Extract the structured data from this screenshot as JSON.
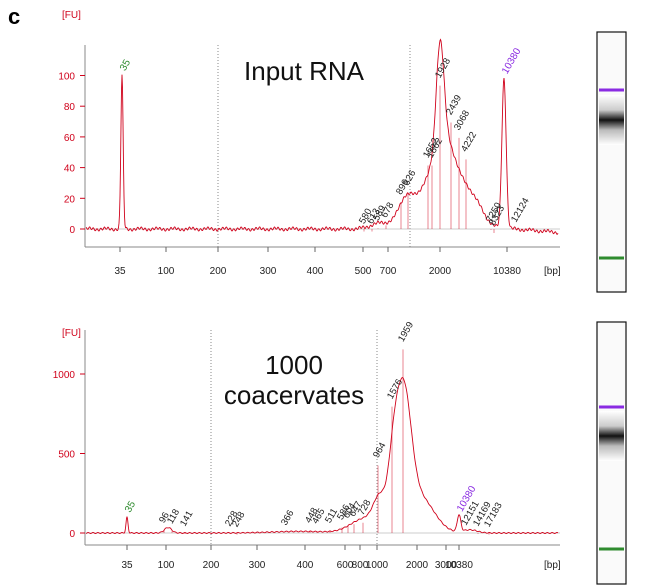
{
  "panel_label": "c",
  "chart_data": [
    {
      "type": "line",
      "title": "Input RNA",
      "ylabel": "[FU]",
      "xlabel": "[bp]",
      "ylim": [
        -5,
        120
      ],
      "y_ticks": [
        0,
        20,
        40,
        60,
        80,
        100
      ],
      "x_ticks": [
        "35",
        "100",
        "200",
        "300",
        "400",
        "500",
        "700",
        "2000",
        "10380"
      ],
      "marker_lower": {
        "label": "35",
        "peak": 100
      },
      "marker_upper": {
        "label": "10380",
        "peak": 98
      },
      "peak_labels": [
        {
          "label": "1928",
          "value": 96
        },
        {
          "label": "2439",
          "value": 72
        },
        {
          "label": "3068",
          "value": 62
        },
        {
          "label": "4222",
          "value": 48
        },
        {
          "label": "1652",
          "value": 44
        },
        {
          "label": "1862",
          "value": 44
        },
        {
          "label": "826",
          "value": 26
        },
        {
          "label": "896",
          "value": 20
        },
        {
          "label": "678",
          "value": 5
        },
        {
          "label": "589",
          "value": 3
        },
        {
          "label": "613",
          "value": 1
        },
        {
          "label": "580",
          "value": 1
        },
        {
          "label": "7250",
          "value": 2
        },
        {
          "label": "8323",
          "value": 0
        },
        {
          "label": "12124",
          "value": 2
        }
      ]
    },
    {
      "type": "line",
      "title": "1000\ncoacervates",
      "ylabel": "[FU]",
      "xlabel": "[bp]",
      "ylim": [
        -30,
        1250
      ],
      "y_ticks": [
        0,
        500,
        1000
      ],
      "x_ticks": [
        "35",
        "100",
        "200",
        "300",
        "400",
        "600",
        "800",
        "1000",
        "2000",
        "3000",
        "10380"
      ],
      "marker_lower": {
        "label": "35",
        "peak": 100
      },
      "marker_upper": {
        "label": "10380",
        "peak": 105
      },
      "peak_labels": [
        {
          "label": "1959",
          "value": 1180
        },
        {
          "label": "1576",
          "value": 820
        },
        {
          "label": "964",
          "value": 450
        },
        {
          "label": "96",
          "value": 40
        },
        {
          "label": "118",
          "value": 35
        },
        {
          "label": "141",
          "value": 20
        },
        {
          "label": "228",
          "value": 20
        },
        {
          "label": "248",
          "value": 15
        },
        {
          "label": "366",
          "value": 25
        },
        {
          "label": "448",
          "value": 40
        },
        {
          "label": "465",
          "value": 35
        },
        {
          "label": "511",
          "value": 40
        },
        {
          "label": "586",
          "value": 60
        },
        {
          "label": "604",
          "value": 70
        },
        {
          "label": "647",
          "value": 80
        },
        {
          "label": "728",
          "value": 90
        },
        {
          "label": "12151",
          "value": 25
        },
        {
          "label": "14169",
          "value": 20
        },
        {
          "label": "17183",
          "value": 15
        }
      ]
    }
  ]
}
